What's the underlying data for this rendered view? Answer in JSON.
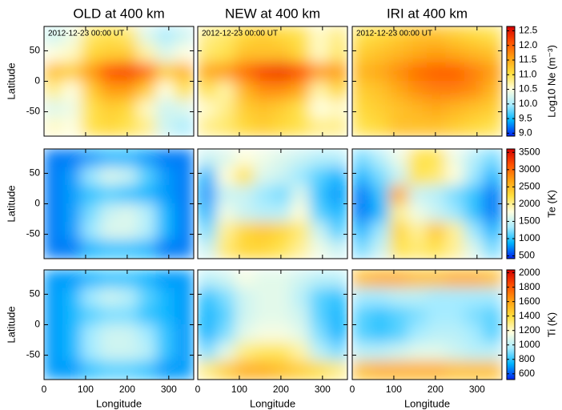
{
  "chart_data": [
    {
      "type": "heatmap",
      "colormap": [
        "#0022ee",
        "#00b4ff",
        "#a8ecff",
        "#ffffe0",
        "#ffe040",
        "#ffa010",
        "#ff5000",
        "#d40000"
      ],
      "colorbar": {
        "label": "Log10 Ne (m⁻³)",
        "lim": [
          8.9,
          12.65
        ],
        "ticks": [
          {
            "value": 9,
            "label": "9.0"
          },
          9.5,
          {
            "value": 10,
            "label": "10.0"
          },
          10.5,
          {
            "value": 11,
            "label": "11.0"
          },
          11.5,
          {
            "value": 12,
            "label": "12.0"
          },
          12.5
        ]
      },
      "x": [
        22.5,
        67.5,
        112.5,
        157.5,
        202.5,
        247.5,
        292.5,
        337.5
      ],
      "y": [
        75,
        45,
        15,
        -15,
        -45,
        -75
      ],
      "panels": [
        {
          "title": "OLD at 400 km",
          "annotation": "2012-12-23 00:00 UT",
          "ylabel": "Latitude",
          "xlim": [
            0,
            360
          ],
          "ylim": [
            -90,
            90
          ],
          "xticks": [
            0,
            100,
            200,
            300
          ],
          "yticks": [
            -50,
            0,
            50
          ],
          "z": [
            [
              10.2,
              10.4,
              10.9,
              11.0,
              10.9,
              10.3,
              10.0,
              10.2
            ],
            [
              10.5,
              10.6,
              11.1,
              11.2,
              11.2,
              10.7,
              10.3,
              10.5
            ],
            [
              11.3,
              11.2,
              11.6,
              12.1,
              12.2,
              11.9,
              11.2,
              11.4
            ],
            [
              10.8,
              10.5,
              11.2,
              11.6,
              11.6,
              11.2,
              10.5,
              11.0
            ],
            [
              10.3,
              10.4,
              11.0,
              11.2,
              11.1,
              10.6,
              10.2,
              10.3
            ],
            [
              10.6,
              10.5,
              11.0,
              11.1,
              11.0,
              10.8,
              10.2,
              10.0
            ]
          ]
        },
        {
          "title": "NEW at 400 km",
          "annotation": "2012-12-23 00:00 UT",
          "xlim": [
            0,
            360
          ],
          "ylim": [
            -90,
            90
          ],
          "xticks": [
            0,
            100,
            200,
            300
          ],
          "yticks": [
            -50,
            0,
            50
          ],
          "z": [
            [
              10.8,
              10.9,
              11.1,
              11.2,
              11.1,
              11.0,
              10.6,
              10.8
            ],
            [
              10.9,
              11.0,
              11.3,
              11.3,
              11.3,
              11.1,
              10.6,
              10.9
            ],
            [
              11.5,
              11.6,
              11.9,
              12.2,
              12.3,
              12.1,
              11.6,
              11.6
            ],
            [
              11.0,
              10.7,
              11.4,
              11.7,
              11.7,
              11.5,
              10.7,
              11.1
            ],
            [
              10.6,
              10.8,
              11.2,
              11.3,
              11.2,
              11.0,
              10.5,
              10.6
            ],
            [
              10.8,
              10.9,
              11.1,
              11.2,
              11.1,
              11.0,
              10.8,
              10.8
            ]
          ]
        },
        {
          "title": "IRI at 400 km",
          "annotation": "2012-12-23 00:00 UT",
          "xlim": [
            0,
            360
          ],
          "ylim": [
            -90,
            90
          ],
          "xticks": [
            0,
            100,
            200,
            300
          ],
          "yticks": [
            -50,
            0,
            50
          ],
          "z": [
            [
              11.0,
              11.1,
              11.2,
              11.3,
              11.3,
              11.2,
              11.1,
              11.0
            ],
            [
              11.2,
              11.3,
              11.4,
              11.5,
              11.6,
              11.5,
              11.4,
              11.3
            ],
            [
              11.4,
              11.5,
              11.7,
              11.9,
              12.0,
              12.0,
              11.8,
              11.6
            ],
            [
              11.2,
              11.3,
              11.5,
              11.7,
              11.8,
              11.8,
              11.7,
              11.4
            ],
            [
              11.1,
              11.2,
              11.3,
              11.4,
              11.5,
              11.4,
              11.3,
              11.2
            ],
            [
              11.0,
              11.1,
              11.3,
              11.3,
              11.3,
              11.2,
              11.1,
              11.0
            ]
          ]
        }
      ]
    },
    {
      "type": "heatmap",
      "colormap": [
        "#0022ee",
        "#00b4ff",
        "#a8ecff",
        "#ffffe0",
        "#ffe040",
        "#ffa010",
        "#ff5000",
        "#d40000"
      ],
      "colorbar": {
        "label": "Te (K)",
        "lim": [
          420,
          3600
        ],
        "ticks": [
          500,
          1000,
          1500,
          2000,
          2500,
          3000,
          3500
        ]
      },
      "x": [
        22.5,
        67.5,
        112.5,
        157.5,
        202.5,
        247.5,
        292.5,
        337.5
      ],
      "y": [
        75,
        45,
        15,
        -15,
        -45,
        -75
      ],
      "panels": [
        {
          "ylabel": "Latitude",
          "xlim": [
            0,
            360
          ],
          "ylim": [
            -90,
            90
          ],
          "xticks": [
            0,
            100,
            200,
            300
          ],
          "yticks": [
            -50,
            0,
            50
          ],
          "z": [
            [
              700,
              700,
              800,
              900,
              900,
              800,
              700,
              700
            ],
            [
              700,
              800,
              1300,
              1600,
              1500,
              1100,
              800,
              700
            ],
            [
              700,
              800,
              1000,
              1100,
              1000,
              900,
              800,
              700
            ],
            [
              700,
              800,
              1200,
              1500,
              1600,
              1400,
              900,
              700
            ],
            [
              700,
              800,
              1300,
              1600,
              1600,
              1400,
              900,
              700
            ],
            [
              700,
              700,
              900,
              1000,
              1000,
              900,
              700,
              700
            ]
          ]
        },
        {
          "xlim": [
            0,
            360
          ],
          "ylim": [
            -90,
            90
          ],
          "xticks": [
            0,
            100,
            200,
            300
          ],
          "yticks": [
            -50,
            0,
            50
          ],
          "z": [
            [
              1500,
              1600,
              1800,
              1700,
              1600,
              1500,
              1400,
              1400
            ],
            [
              900,
              1800,
              2200,
              1600,
              1500,
              1300,
              1100,
              900
            ],
            [
              800,
              1500,
              1500,
              1300,
              1200,
              1600,
              1000,
              800
            ],
            [
              900,
              1700,
              1500,
              1400,
              1400,
              1800,
              1100,
              900
            ],
            [
              1200,
              2000,
              2300,
              2400,
              2300,
              2100,
              1500,
              1100
            ],
            [
              1500,
              2100,
              2300,
              2300,
              2200,
              2000,
              1700,
              1500
            ]
          ]
        },
        {
          "xlim": [
            0,
            360
          ],
          "ylim": [
            -90,
            90
          ],
          "xticks": [
            0,
            100,
            200,
            300
          ],
          "yticks": [
            -50,
            0,
            50
          ],
          "z": [
            [
              1200,
              1400,
              1700,
              2200,
              2200,
              1700,
              1400,
              1200
            ],
            [
              900,
              1200,
              1500,
              2200,
              2100,
              1800,
              1300,
              900
            ],
            [
              700,
              1000,
              2600,
              1500,
              1400,
              1200,
              1000,
              700
            ],
            [
              700,
              900,
              2000,
              1700,
              1500,
              1300,
              1000,
              700
            ],
            [
              900,
              1300,
              2300,
              2000,
              2400,
              2000,
              1300,
              900
            ],
            [
              1200,
              1500,
              2200,
              2100,
              2200,
              2000,
              1600,
              1200
            ]
          ]
        }
      ]
    },
    {
      "type": "heatmap",
      "colormap": [
        "#0022ee",
        "#00b4ff",
        "#a8ecff",
        "#ffffe0",
        "#ffe040",
        "#ffa010",
        "#ff5000",
        "#d40000"
      ],
      "colorbar": {
        "label": "Ti (K)",
        "lim": [
          520,
          2040
        ],
        "ticks": [
          600,
          800,
          1000,
          1200,
          1400,
          1600,
          1800,
          2000
        ]
      },
      "x": [
        22.5,
        67.5,
        112.5,
        157.5,
        202.5,
        247.5,
        292.5,
        337.5
      ],
      "y": [
        75,
        45,
        15,
        -15,
        -45,
        -75
      ],
      "panels": [
        {
          "ylabel": "Latitude",
          "xlabel": "Longitude",
          "xlim": [
            0,
            360
          ],
          "ylim": [
            -90,
            90
          ],
          "xticks": [
            0,
            100,
            200,
            300
          ],
          "yticks": [
            -50,
            0,
            50
          ],
          "z": [
            [
              700,
              700,
              750,
              800,
              800,
              750,
              700,
              700
            ],
            [
              700,
              750,
              950,
              1050,
              1000,
              850,
              750,
              700
            ],
            [
              700,
              750,
              850,
              900,
              900,
              800,
              750,
              700
            ],
            [
              700,
              750,
              950,
              1050,
              1050,
              950,
              800,
              700
            ],
            [
              700,
              750,
              950,
              1050,
              1050,
              1000,
              800,
              700
            ],
            [
              700,
              700,
              800,
              850,
              850,
              800,
              700,
              700
            ]
          ]
        },
        {
          "xlabel": "Longitude",
          "xlim": [
            0,
            360
          ],
          "ylim": [
            -90,
            90
          ],
          "xticks": [
            0,
            100,
            200,
            300
          ],
          "yticks": [
            -50,
            0,
            50
          ],
          "z": [
            [
              1000,
              1050,
              1150,
              1100,
              1100,
              1050,
              1000,
              1000
            ],
            [
              800,
              900,
              1050,
              1100,
              1100,
              1000,
              850,
              800
            ],
            [
              750,
              850,
              1050,
              1100,
              1100,
              1050,
              850,
              750
            ],
            [
              750,
              900,
              1100,
              1150,
              1150,
              1100,
              900,
              750
            ],
            [
              900,
              1100,
              1300,
              1350,
              1350,
              1250,
              1000,
              900
            ],
            [
              1300,
              1450,
              1550,
              1550,
              1500,
              1450,
              1400,
              1300
            ]
          ]
        },
        {
          "xlabel": "Longitude",
          "xlim": [
            0,
            360
          ],
          "ylim": [
            -90,
            90
          ],
          "xticks": [
            0,
            100,
            200,
            300
          ],
          "yticks": [
            -50,
            0,
            50
          ],
          "z": [
            [
              1500,
              1550,
              1550,
              1500,
              1500,
              1550,
              1550,
              1500
            ],
            [
              950,
              950,
              1000,
              1000,
              950,
              950,
              950,
              950
            ],
            [
              850,
              800,
              850,
              900,
              950,
              950,
              900,
              850
            ],
            [
              850,
              800,
              850,
              950,
              1000,
              1000,
              950,
              850
            ],
            [
              1000,
              1000,
              1050,
              1100,
              1100,
              1050,
              1000,
              1000
            ],
            [
              1500,
              1550,
              1550,
              1550,
              1550,
              1500,
              1500,
              1500
            ]
          ]
        }
      ]
    }
  ]
}
